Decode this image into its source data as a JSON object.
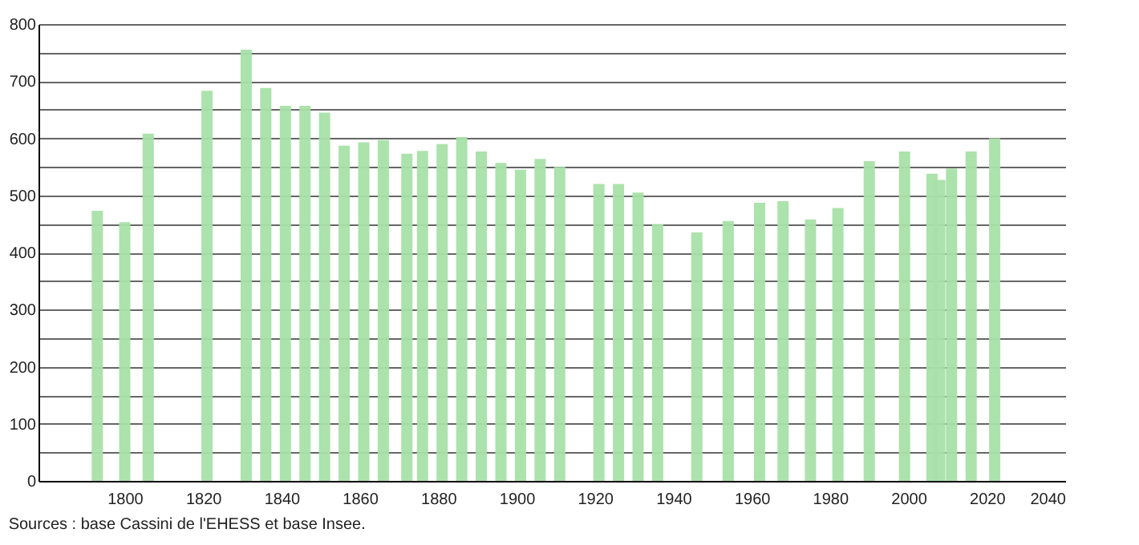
{
  "chart_data": {
    "type": "bar",
    "x": [
      1793,
      1800,
      1806,
      1821,
      1831,
      1836,
      1841,
      1846,
      1851,
      1856,
      1861,
      1866,
      1872,
      1876,
      1881,
      1886,
      1891,
      1896,
      1901,
      1906,
      1911,
      1921,
      1926,
      1931,
      1936,
      1946,
      1954,
      1962,
      1968,
      1975,
      1982,
      1990,
      1999,
      2006,
      2008,
      2011,
      2016,
      2022
    ],
    "values": [
      473,
      453,
      608,
      683,
      755,
      688,
      657,
      657,
      645,
      587,
      593,
      597,
      573,
      578,
      590,
      602,
      577,
      557,
      545,
      564,
      550,
      520,
      520,
      505,
      450,
      435,
      455,
      487,
      490,
      458,
      478,
      560,
      577,
      538,
      527,
      547,
      577,
      600
    ],
    "color": "#a8e0a8",
    "xlim": [
      1778,
      2040
    ],
    "xticks": [
      1800,
      1820,
      1840,
      1860,
      1880,
      1900,
      1920,
      1940,
      1960,
      1980,
      2000,
      2020,
      2040
    ],
    "ylim": [
      0,
      800
    ],
    "yticks": [
      0,
      {
        "value": 50,
        "label": null
      },
      100,
      {
        "value": 150,
        "label": null
      },
      200,
      {
        "value": 250,
        "label": null
      },
      300,
      {
        "value": 350,
        "label": null
      },
      400,
      {
        "value": 450,
        "label": null
      },
      500,
      {
        "value": 550,
        "label": null
      },
      600,
      {
        "value": 650,
        "label": null
      },
      700,
      {
        "value": 750,
        "label": null
      },
      800
    ],
    "grid": "y",
    "annotations": [
      "Sources : base Cassini de l'EHESS et base Insee."
    ]
  }
}
